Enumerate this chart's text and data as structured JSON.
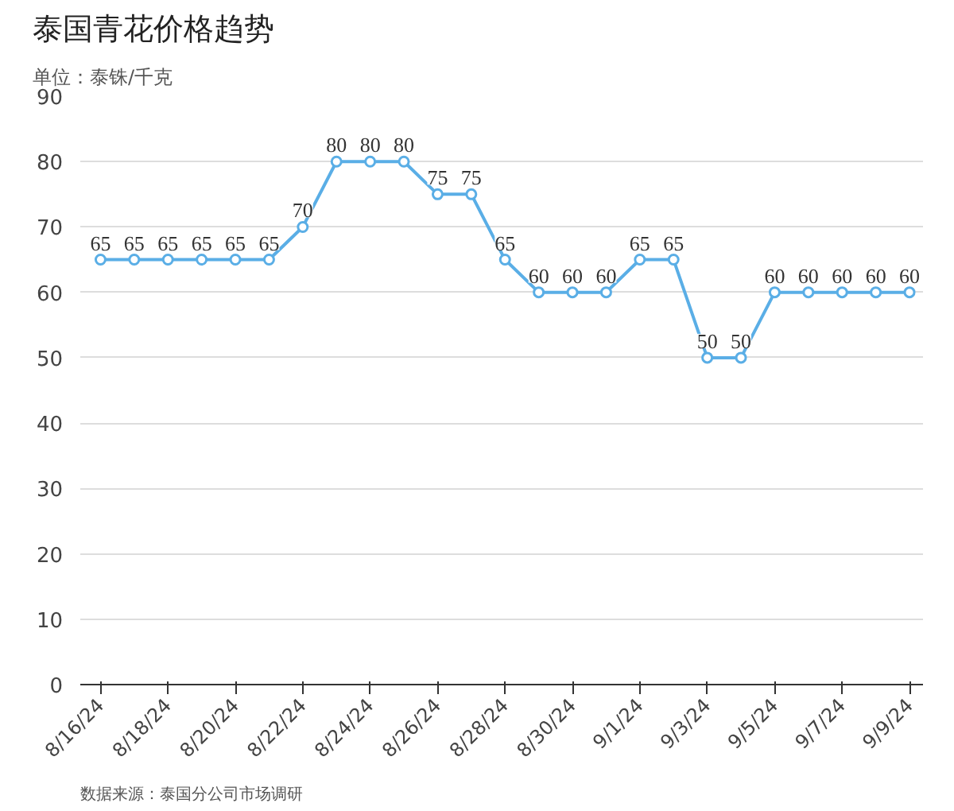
{
  "chart_data": {
    "type": "line",
    "title": "泰国青花价格趋势",
    "subtitle": "单位：泰铢/千克",
    "categories": [
      "8/16/24",
      null,
      "8/18/24",
      null,
      "8/20/24",
      null,
      "8/22/24",
      null,
      "8/24/24",
      null,
      "8/26/24",
      null,
      "8/28/24",
      null,
      "8/30/24",
      null,
      "9/1/24",
      null,
      "9/3/24",
      null,
      "9/5/24",
      null,
      "9/7/24",
      null,
      "9/9/24"
    ],
    "series": [
      {
        "color": "#5aaee6",
        "values": [
          65,
          65,
          65,
          65,
          65,
          65,
          70,
          80,
          80,
          80,
          75,
          75,
          65,
          60,
          60,
          60,
          65,
          65,
          50,
          50,
          60,
          60,
          60,
          60,
          60
        ]
      }
    ],
    "ylim": [
      0,
      90
    ],
    "yticks": [
      0,
      10,
      20,
      30,
      40,
      50,
      60,
      70,
      80,
      90
    ],
    "grid": "y",
    "marker": "circle",
    "line_style": "solid",
    "data_labels": true,
    "annotations": [
      "数据来源：泰国分公司市场调研"
    ]
  }
}
